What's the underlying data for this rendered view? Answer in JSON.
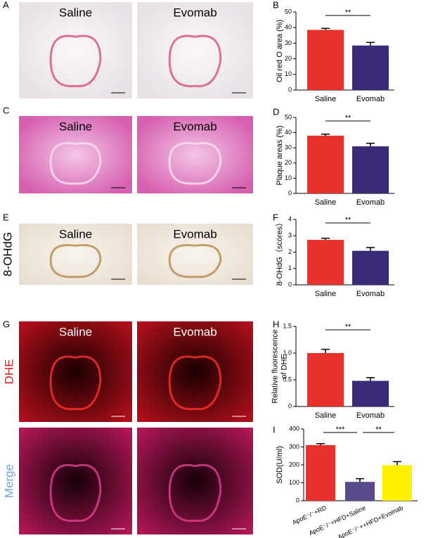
{
  "image_panels": [
    {
      "letter": "A",
      "left": "Saline",
      "right": "Evomab"
    },
    {
      "letter": "C",
      "left": "Saline",
      "right": "Evomab"
    },
    {
      "letter": "E",
      "left": "Saline",
      "right": "Evomab",
      "side": [
        "8-OHdG"
      ]
    },
    {
      "letter": "G",
      "left": "Saline",
      "right": "Evomab",
      "side": [
        "DHE",
        "Merge"
      ]
    }
  ],
  "chart_data": [
    {
      "type": "bar",
      "panel": "B",
      "ylabel": [
        "Oil red O area (%)"
      ],
      "categories": [
        "Saline",
        "Evomab"
      ],
      "values": [
        38.5,
        28.5
      ],
      "errors": [
        1,
        2
      ],
      "colors": [
        "#e8312a",
        "#3b2a78"
      ],
      "ylim": [
        0,
        50
      ],
      "yticks": [
        0,
        10,
        20,
        30,
        40,
        50
      ],
      "significance": [
        {
          "between": [
            "Saline",
            "Evomab"
          ],
          "label": "**"
        }
      ]
    },
    {
      "type": "bar",
      "panel": "D",
      "ylabel": [
        "Plaque areas (%)"
      ],
      "categories": [
        "Saline",
        "Evomab"
      ],
      "values": [
        38,
        31
      ],
      "errors": [
        1,
        2
      ],
      "colors": [
        "#e8312a",
        "#3b2a78"
      ],
      "ylim": [
        0,
        50
      ],
      "yticks": [
        0,
        10,
        20,
        30,
        40,
        50
      ],
      "significance": [
        {
          "between": [
            "Saline",
            "Evomab"
          ],
          "label": "**"
        }
      ]
    },
    {
      "type": "bar",
      "panel": "F",
      "ylabel": [
        "8-OHdG（scores）"
      ],
      "categories": [
        "Saline",
        "Evomab"
      ],
      "values": [
        2.75,
        2.08
      ],
      "errors": [
        0.1,
        0.2
      ],
      "colors": [
        "#e8312a",
        "#3b2a78"
      ],
      "ylim": [
        0,
        4
      ],
      "yticks": [
        0,
        1,
        2,
        3,
        4
      ],
      "significance": [
        {
          "between": [
            "Saline",
            "Evomab"
          ],
          "label": "**"
        }
      ]
    },
    {
      "type": "bar",
      "panel": "H",
      "ylabel": [
        "Relative fluorescence",
        "of DHE"
      ],
      "categories": [
        "Saline",
        "Evomab"
      ],
      "values": [
        1.0,
        0.48
      ],
      "errors": [
        0.07,
        0.06
      ],
      "colors": [
        "#e8312a",
        "#3b2a78"
      ],
      "ylim": [
        0,
        1.5
      ],
      "yticks": [
        0,
        0.5,
        {
          "value": 1,
          "label": "1.0"
        },
        1.5
      ],
      "significance": [
        {
          "between": [
            "Saline",
            "Evomab"
          ],
          "label": "**"
        }
      ]
    },
    {
      "type": "bar",
      "panel": "I",
      "ylabel": [
        "SOD(U/ml)"
      ],
      "categories": [
        "ApoE⁻/⁻+RD",
        "ApoE⁻/⁻+HFD+Saline",
        "ApoE⁻/⁻++HFD+Evomab"
      ],
      "values": [
        310,
        105,
        198
      ],
      "errors": [
        8,
        18,
        20
      ],
      "colors": [
        "#e8312a",
        "#5a4a8a",
        "#fff200"
      ],
      "ylim": [
        0,
        400
      ],
      "yticks": [
        0,
        100,
        200,
        300,
        400
      ],
      "significance": [
        {
          "between": [
            "ApoE⁻/⁻+RD",
            "ApoE⁻/⁻+HFD+Saline"
          ],
          "label": "***"
        },
        {
          "between": [
            "ApoE⁻/⁻+HFD+Saline",
            "ApoE⁻/⁻++HFD+Evomab"
          ],
          "label": "**"
        }
      ]
    }
  ]
}
